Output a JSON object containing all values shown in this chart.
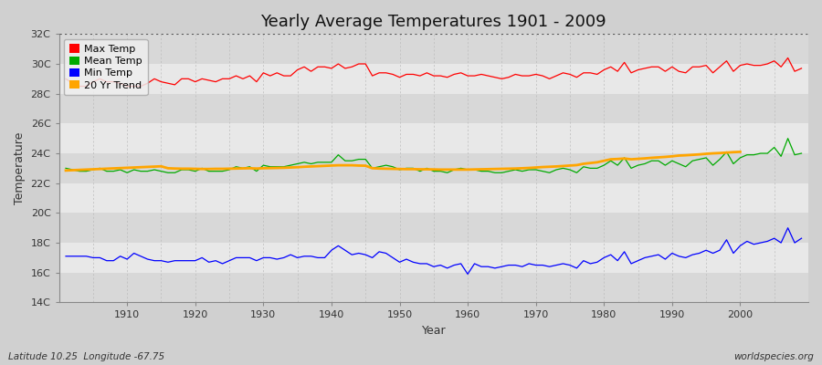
{
  "title": "Yearly Average Temperatures 1901 - 2009",
  "xlabel": "Year",
  "ylabel": "Temperature",
  "years": [
    1901,
    1902,
    1903,
    1904,
    1905,
    1906,
    1907,
    1908,
    1909,
    1910,
    1911,
    1912,
    1913,
    1914,
    1915,
    1916,
    1917,
    1918,
    1919,
    1920,
    1921,
    1922,
    1923,
    1924,
    1925,
    1926,
    1927,
    1928,
    1929,
    1930,
    1931,
    1932,
    1933,
    1934,
    1935,
    1936,
    1937,
    1938,
    1939,
    1940,
    1941,
    1942,
    1943,
    1944,
    1945,
    1946,
    1947,
    1948,
    1949,
    1950,
    1951,
    1952,
    1953,
    1954,
    1955,
    1956,
    1957,
    1958,
    1959,
    1960,
    1961,
    1962,
    1963,
    1964,
    1965,
    1966,
    1967,
    1968,
    1969,
    1970,
    1971,
    1972,
    1973,
    1974,
    1975,
    1976,
    1977,
    1978,
    1979,
    1980,
    1981,
    1982,
    1983,
    1984,
    1985,
    1986,
    1987,
    1988,
    1989,
    1990,
    1991,
    1992,
    1993,
    1994,
    1995,
    1996,
    1997,
    1998,
    1999,
    2000,
    2001,
    2002,
    2003,
    2004,
    2005,
    2006,
    2007,
    2008,
    2009
  ],
  "max_temp": [
    29.0,
    28.7,
    28.5,
    28.5,
    28.8,
    29.0,
    28.8,
    28.8,
    28.7,
    28.5,
    28.5,
    28.5,
    28.7,
    29.0,
    28.8,
    28.7,
    28.6,
    29.0,
    29.0,
    28.8,
    29.0,
    28.9,
    28.8,
    29.0,
    29.0,
    29.2,
    29.0,
    29.2,
    28.8,
    29.4,
    29.2,
    29.4,
    29.2,
    29.2,
    29.6,
    29.8,
    29.5,
    29.8,
    29.8,
    29.7,
    30.0,
    29.7,
    29.8,
    30.0,
    30.0,
    29.2,
    29.4,
    29.4,
    29.3,
    29.1,
    29.3,
    29.3,
    29.2,
    29.4,
    29.2,
    29.2,
    29.1,
    29.3,
    29.4,
    29.2,
    29.2,
    29.3,
    29.2,
    29.1,
    29.0,
    29.1,
    29.3,
    29.2,
    29.2,
    29.3,
    29.2,
    29.0,
    29.2,
    29.4,
    29.3,
    29.1,
    29.4,
    29.4,
    29.3,
    29.6,
    29.8,
    29.5,
    30.1,
    29.4,
    29.6,
    29.7,
    29.8,
    29.8,
    29.5,
    29.8,
    29.5,
    29.4,
    29.8,
    29.8,
    29.9,
    29.4,
    29.8,
    30.2,
    29.5,
    29.9,
    30.0,
    29.9,
    29.9,
    30.0,
    30.2,
    29.8,
    30.4,
    29.5,
    29.7
  ],
  "mean_temp": [
    23.0,
    22.9,
    22.8,
    22.8,
    22.9,
    23.0,
    22.8,
    22.8,
    22.9,
    22.7,
    22.9,
    22.8,
    22.8,
    22.9,
    22.8,
    22.7,
    22.7,
    22.9,
    22.9,
    22.8,
    23.0,
    22.8,
    22.8,
    22.8,
    22.9,
    23.1,
    23.0,
    23.1,
    22.8,
    23.2,
    23.1,
    23.1,
    23.1,
    23.2,
    23.3,
    23.4,
    23.3,
    23.4,
    23.4,
    23.4,
    23.9,
    23.5,
    23.5,
    23.6,
    23.6,
    23.0,
    23.1,
    23.2,
    23.1,
    22.9,
    23.0,
    23.0,
    22.8,
    23.0,
    22.8,
    22.8,
    22.7,
    22.9,
    23.0,
    22.9,
    22.9,
    22.8,
    22.8,
    22.7,
    22.7,
    22.8,
    22.9,
    22.8,
    22.9,
    22.9,
    22.8,
    22.7,
    22.9,
    23.0,
    22.9,
    22.7,
    23.1,
    23.0,
    23.0,
    23.2,
    23.5,
    23.2,
    23.7,
    23.0,
    23.2,
    23.3,
    23.5,
    23.5,
    23.2,
    23.5,
    23.3,
    23.1,
    23.5,
    23.6,
    23.7,
    23.2,
    23.6,
    24.1,
    23.3,
    23.7,
    23.9,
    23.9,
    24.0,
    24.0,
    24.4,
    23.8,
    25.0,
    23.9,
    24.0
  ],
  "min_temp": [
    17.1,
    17.1,
    17.1,
    17.1,
    17.0,
    17.0,
    16.8,
    16.8,
    17.1,
    16.9,
    17.3,
    17.1,
    16.9,
    16.8,
    16.8,
    16.7,
    16.8,
    16.8,
    16.8,
    16.8,
    17.0,
    16.7,
    16.8,
    16.6,
    16.8,
    17.0,
    17.0,
    17.0,
    16.8,
    17.0,
    17.0,
    16.9,
    17.0,
    17.2,
    17.0,
    17.1,
    17.1,
    17.0,
    17.0,
    17.5,
    17.8,
    17.5,
    17.2,
    17.3,
    17.2,
    17.0,
    17.4,
    17.3,
    17.0,
    16.7,
    16.9,
    16.7,
    16.6,
    16.6,
    16.4,
    16.5,
    16.3,
    16.5,
    16.6,
    15.9,
    16.6,
    16.4,
    16.4,
    16.3,
    16.4,
    16.5,
    16.5,
    16.4,
    16.6,
    16.5,
    16.5,
    16.4,
    16.5,
    16.6,
    16.5,
    16.3,
    16.8,
    16.6,
    16.7,
    17.0,
    17.2,
    16.8,
    17.4,
    16.6,
    16.8,
    17.0,
    17.1,
    17.2,
    16.9,
    17.3,
    17.1,
    17.0,
    17.2,
    17.3,
    17.5,
    17.3,
    17.5,
    18.2,
    17.3,
    17.8,
    18.1,
    17.9,
    18.0,
    18.1,
    18.3,
    18.0,
    19.0,
    18.0,
    18.3
  ],
  "trend_temp": [
    22.85,
    22.87,
    22.89,
    22.91,
    22.93,
    22.95,
    22.97,
    22.99,
    23.01,
    23.03,
    23.05,
    23.07,
    23.09,
    23.11,
    23.13,
    23.0,
    22.98,
    22.97,
    22.97,
    22.96,
    22.95,
    22.95,
    22.96,
    22.96,
    22.97,
    22.98,
    22.99,
    23.0,
    22.98,
    23.0,
    23.01,
    23.02,
    23.03,
    23.05,
    23.07,
    23.1,
    23.12,
    23.14,
    23.16,
    23.18,
    23.2,
    23.2,
    23.2,
    23.18,
    23.17,
    23.0,
    22.98,
    22.97,
    22.96,
    22.95,
    22.94,
    22.94,
    22.93,
    22.93,
    22.92,
    22.91,
    22.91,
    22.91,
    22.91,
    22.91,
    22.92,
    22.93,
    22.94,
    22.95,
    22.96,
    22.97,
    22.98,
    23.0,
    23.02,
    23.05,
    23.08,
    23.1,
    23.12,
    23.15,
    23.18,
    23.21,
    23.3,
    23.35,
    23.4,
    23.5,
    23.6,
    23.62,
    23.65,
    23.6,
    23.63,
    23.66,
    23.7,
    23.73,
    23.76,
    23.8,
    23.85,
    23.87,
    23.9,
    23.93,
    23.97,
    24.0,
    24.02,
    24.05,
    24.08,
    24.1,
    null,
    null,
    null,
    null,
    null,
    null,
    null,
    null,
    null
  ],
  "ylim": [
    14,
    32
  ],
  "yticks": [
    14,
    16,
    18,
    20,
    22,
    24,
    26,
    28,
    30,
    32
  ],
  "ytick_labels": [
    "14C",
    "16C",
    "18C",
    "20C",
    "22C",
    "24C",
    "26C",
    "28C",
    "30C",
    "32C"
  ],
  "band_colors": [
    "#d8d8d8",
    "#e8e8e8"
  ],
  "bg_color": "#d0d0d0",
  "outer_bg": "#d0d0d0",
  "grid_vline_color": "#bbbbbb",
  "max_color": "#ff0000",
  "mean_color": "#00aa00",
  "min_color": "#0000ff",
  "trend_color": "#ffa500",
  "dotted_line_color": "#555555",
  "footnote_left": "Latitude 10.25  Longitude -67.75",
  "footnote_right": "worldspecies.org",
  "title_fontsize": 13,
  "axis_label_fontsize": 9,
  "tick_fontsize": 8,
  "legend_fontsize": 8
}
